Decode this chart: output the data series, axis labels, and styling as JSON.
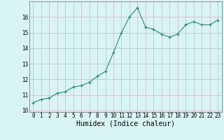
{
  "x": [
    0,
    1,
    2,
    3,
    4,
    5,
    6,
    7,
    8,
    9,
    10,
    11,
    12,
    13,
    14,
    15,
    16,
    17,
    18,
    19,
    20,
    21,
    22,
    23
  ],
  "y": [
    10.5,
    10.7,
    10.8,
    11.1,
    11.2,
    11.5,
    11.6,
    11.8,
    12.2,
    12.5,
    13.7,
    15.0,
    16.0,
    16.6,
    15.35,
    15.2,
    14.9,
    14.7,
    14.9,
    15.5,
    15.7,
    15.5,
    15.5,
    15.8
  ],
  "xlabel": "Humidex (Indice chaleur)",
  "line_color": "#2a8a7a",
  "marker": "+",
  "marker_size": 3,
  "bg_color": "#d8f4f4",
  "grid_color_major": "#c8b8b8",
  "grid_color_minor": "#d8c8c8",
  "ylim": [
    9.9,
    17.0
  ],
  "xlim": [
    -0.5,
    23.5
  ],
  "yticks": [
    10,
    11,
    12,
    13,
    14,
    15,
    16
  ],
  "xticks": [
    0,
    1,
    2,
    3,
    4,
    5,
    6,
    7,
    8,
    9,
    10,
    11,
    12,
    13,
    14,
    15,
    16,
    17,
    18,
    19,
    20,
    21,
    22,
    23
  ],
  "tick_fontsize": 5.5,
  "xlabel_fontsize": 7
}
